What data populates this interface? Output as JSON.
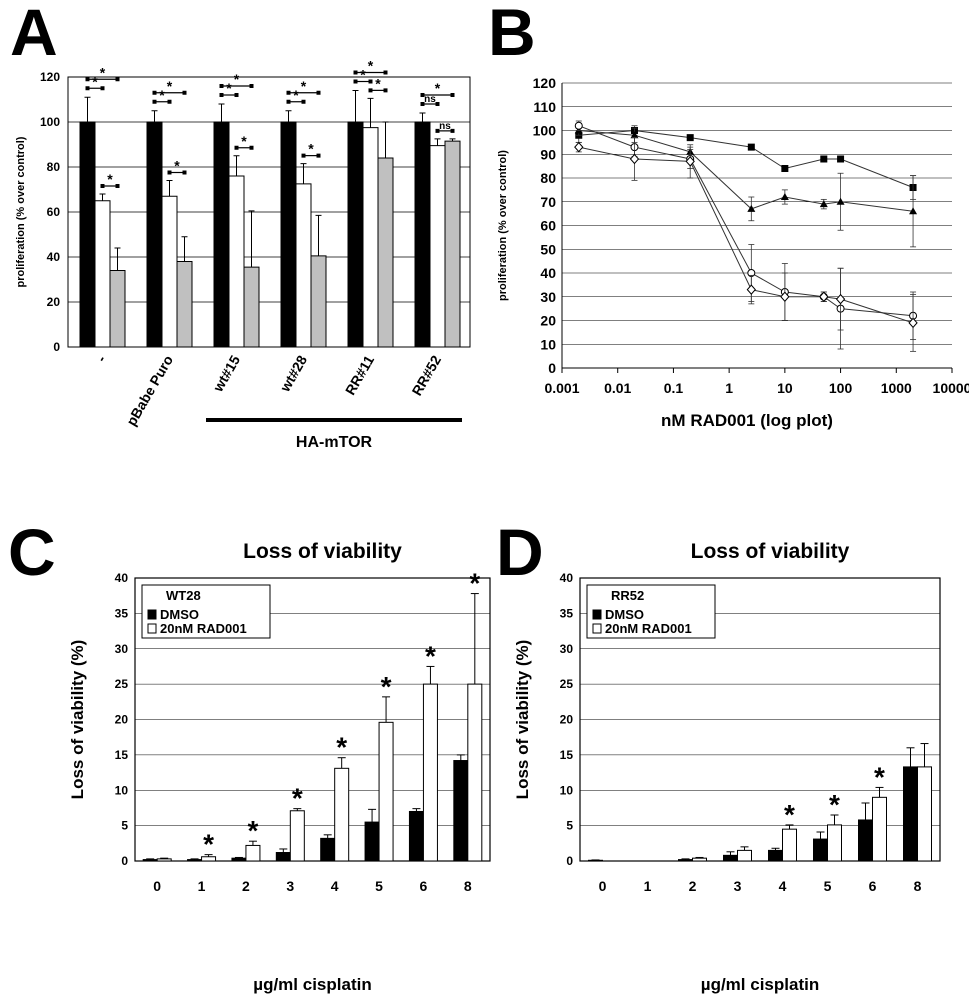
{
  "panel_labels": [
    "A",
    "B",
    "C",
    "D"
  ],
  "chart_data": [
    {
      "id": "A",
      "type": "bar",
      "ylabel": "proliferation (% over control)",
      "ylim": [
        0,
        120
      ],
      "yticks": [
        0,
        20,
        40,
        60,
        80,
        100,
        120
      ],
      "grid": true,
      "categories": [
        "-",
        "pBabe Puro",
        "wt#15",
        "wt#28",
        "RR#11",
        "RR#52"
      ],
      "group_label": "HA-mTOR",
      "bar_colors": [
        "#000000",
        "#ffffff",
        "#c0c0c0"
      ],
      "series": [
        {
          "values": [
            100,
            100,
            100,
            100,
            100,
            100
          ],
          "errors": [
            11,
            5,
            8,
            5,
            14,
            4
          ]
        },
        {
          "values": [
            65,
            67,
            76,
            72.5,
            97.5,
            89.5
          ],
          "errors": [
            3,
            7,
            9,
            9,
            13,
            3
          ]
        },
        {
          "values": [
            34,
            38,
            35.5,
            40.5,
            84,
            91.5
          ],
          "errors": [
            10,
            11,
            25,
            18,
            16,
            1
          ]
        }
      ],
      "significance": [
        "*",
        "*",
        "*",
        "*",
        "*",
        "*",
        "*",
        "*",
        "*",
        "*",
        "*",
        "*",
        "*",
        "*",
        "*",
        "*",
        "ns",
        "ns",
        "ns",
        "*",
        "*",
        "ns"
      ]
    },
    {
      "id": "B",
      "type": "line",
      "xlabel": "nM RAD001 (log plot)",
      "ylabel": "proliferation (% over control)",
      "xscale": "log",
      "xlim": [
        0.001,
        10000
      ],
      "xticks": [
        "0.001",
        "0.01",
        "0.1",
        "1",
        "10",
        "100",
        "1000",
        "10000"
      ],
      "ylim": [
        0,
        120
      ],
      "yticks": [
        0,
        10,
        20,
        30,
        40,
        50,
        60,
        70,
        80,
        90,
        100,
        110,
        120
      ],
      "grid": true,
      "x": [
        0.002,
        0.02,
        0.2,
        2.5,
        10,
        50,
        100,
        2000
      ],
      "series": [
        {
          "marker": "filled-square",
          "values": [
            98,
            100,
            97,
            93,
            84,
            88,
            88,
            76
          ],
          "errors": [
            3,
            2,
            1,
            1,
            1,
            1,
            1,
            5
          ]
        },
        {
          "marker": "filled-triangle",
          "values": [
            100,
            98,
            91,
            67,
            72,
            69,
            70,
            66
          ],
          "errors": [
            2,
            3,
            2,
            5,
            3,
            2,
            12,
            15
          ]
        },
        {
          "marker": "open-circle",
          "values": [
            102,
            93,
            88,
            40,
            32,
            30,
            25,
            22
          ],
          "errors": [
            2,
            4,
            4,
            12,
            12,
            2,
            17,
            10
          ]
        },
        {
          "marker": "open-diamond",
          "values": [
            93,
            88,
            87,
            33,
            30,
            30,
            29,
            19
          ],
          "errors": [
            2,
            9,
            7,
            6,
            10,
            2,
            13,
            12
          ]
        }
      ]
    },
    {
      "id": "C",
      "type": "bar",
      "title": "Loss of viability",
      "xlabel": "µg/ml cisplatin",
      "ylabel": "Loss of viability (%)",
      "ylim": [
        0,
        40
      ],
      "yticks": [
        0,
        5,
        10,
        15,
        20,
        25,
        30,
        35,
        40
      ],
      "grid": true,
      "categories": [
        "0",
        "1",
        "2",
        "3",
        "4",
        "5",
        "6",
        "8"
      ],
      "legend_title": "WT28",
      "series": [
        {
          "name": "DMSO",
          "color": "#000000",
          "values": [
            0.2,
            0.2,
            0.4,
            1.2,
            3.2,
            5.5,
            7,
            14.2
          ],
          "errors": [
            0.1,
            0.1,
            0.1,
            0.5,
            0.5,
            1.8,
            0.4,
            0.8
          ]
        },
        {
          "name": "20nM RAD001",
          "color": "#ffffff",
          "values": [
            0.3,
            0.6,
            2.2,
            7.1,
            13.1,
            19.6,
            25,
            25
          ],
          "errors": [
            0.1,
            0.3,
            0.6,
            0.3,
            1.5,
            3.6,
            2.5,
            12.8
          ]
        }
      ],
      "significance": [
        "",
        "*",
        "*",
        "*",
        "*",
        "*",
        "*",
        "*"
      ]
    },
    {
      "id": "D",
      "type": "bar",
      "title": "Loss of viability",
      "xlabel": "µg/ml cisplatin",
      "ylabel": "Loss of viability (%)",
      "ylim": [
        0,
        40
      ],
      "yticks": [
        0,
        5,
        10,
        15,
        20,
        25,
        30,
        35,
        40
      ],
      "grid": true,
      "categories": [
        "0",
        "1",
        "2",
        "3",
        "4",
        "5",
        "6",
        "8"
      ],
      "legend_title": "RR52",
      "series": [
        {
          "name": "DMSO",
          "color": "#000000",
          "values": [
            0.1,
            0,
            0.2,
            0.8,
            1.5,
            3.1,
            5.8,
            13.3
          ],
          "errors": [
            0.05,
            0,
            0.1,
            0.5,
            0.3,
            1,
            2.4,
            2.7
          ]
        },
        {
          "name": "20nM RAD001",
          "color": "#ffffff",
          "values": [
            0,
            0,
            0.4,
            1.5,
            4.5,
            5.1,
            9,
            13.3
          ],
          "errors": [
            0,
            0,
            0.1,
            0.5,
            0.6,
            1.4,
            1.4,
            3.3
          ]
        }
      ],
      "significance": [
        "",
        "",
        "",
        "",
        "*",
        "*",
        "*",
        ""
      ]
    }
  ]
}
